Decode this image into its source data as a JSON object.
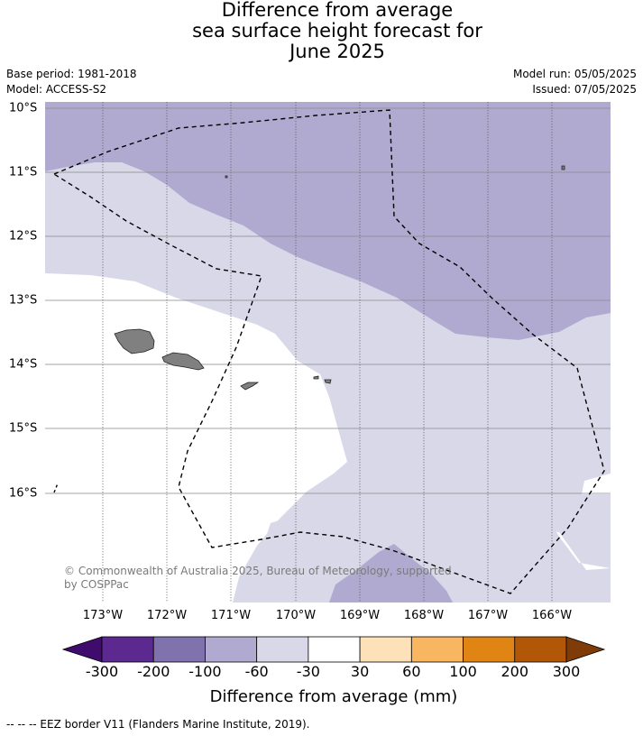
{
  "title": {
    "line1": "Difference from average",
    "line2": "sea surface height forecast for",
    "line3": "June 2025"
  },
  "meta": {
    "base_period": "Base period: 1981-2018",
    "model": "Model: ACCESS-S2",
    "model_run": "Model run: 05/05/2025",
    "issued": "Issued: 07/05/2025"
  },
  "map": {
    "lat_labels": [
      "10°S",
      "11°S",
      "12°S",
      "13°S",
      "14°S",
      "15°S",
      "16°S"
    ],
    "lon_labels": [
      "173°W",
      "172°W",
      "171°W",
      "170°W",
      "169°W",
      "168°W",
      "167°W",
      "166°W"
    ],
    "copyright_line1": "© Commonwealth of Australia 2025, Bureau of Meteorology, supported",
    "copyright_line2": "by COSPPac",
    "colors": {
      "band_-60_-30": "#d8d8e9",
      "band_-100_-60": "#b0aad0",
      "band_-30_30": "#ffffff",
      "land": "#808080",
      "eez_border": "#000000"
    }
  },
  "colorbar": {
    "tick_labels": [
      "-300",
      "-200",
      "-100",
      "-60",
      "-30",
      "30",
      "60",
      "100",
      "200",
      "300"
    ],
    "colors": [
      "#3f0b6d",
      "#5b2990",
      "#7f72ad",
      "#b0aad0",
      "#d8d8e9",
      "#ffffff",
      "#fde1b8",
      "#f9b661",
      "#e08414",
      "#b25707",
      "#7f3b08"
    ],
    "axis_title": "Difference from average (mm)"
  },
  "footer": {
    "legend_text": "--  --  -- EEZ border V11 (Flanders Marine Institute, 2019)."
  }
}
